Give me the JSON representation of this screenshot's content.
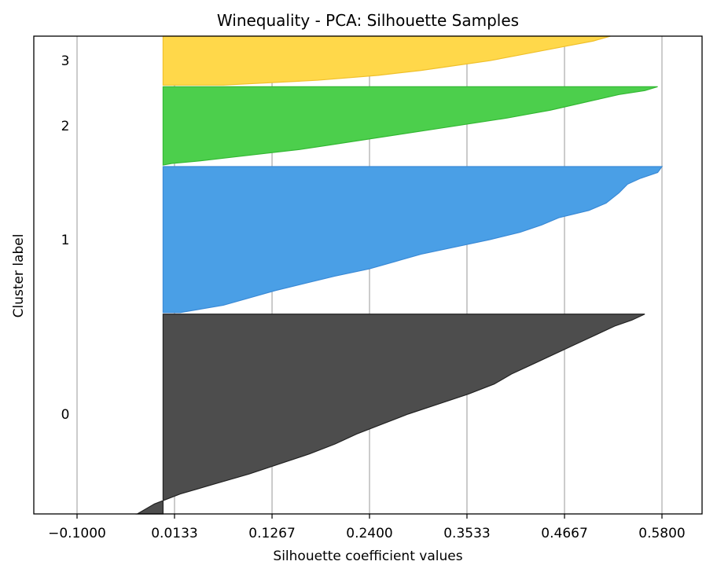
{
  "chart_data": {
    "type": "area",
    "title": "Winequality - PCA: Silhouette Samples",
    "xlabel": "Silhouette coefficient values",
    "ylabel": "Cluster label",
    "xlim": [
      -0.1,
      0.58
    ],
    "xticks": [
      "−0.1000",
      "0.0133",
      "0.1267",
      "0.2400",
      "0.3533",
      "0.4667",
      "0.5800"
    ],
    "xtick_values": [
      -0.1,
      0.0133,
      0.1267,
      0.24,
      0.3533,
      0.4667,
      0.58
    ],
    "grid": "vertical",
    "clusters": [
      {
        "label": "0",
        "color": "#4d4d4d",
        "edge": "#222222",
        "size": 1020,
        "profile": [
          [
            0.0,
            0.56
          ],
          [
            0.03,
            0.545
          ],
          [
            0.06,
            0.525
          ],
          [
            0.1,
            0.505
          ],
          [
            0.15,
            0.48
          ],
          [
            0.2,
            0.455
          ],
          [
            0.25,
            0.43
          ],
          [
            0.3,
            0.405
          ],
          [
            0.35,
            0.385
          ],
          [
            0.4,
            0.355
          ],
          [
            0.45,
            0.32
          ],
          [
            0.5,
            0.285
          ],
          [
            0.55,
            0.255
          ],
          [
            0.6,
            0.225
          ],
          [
            0.65,
            0.2
          ],
          [
            0.7,
            0.17
          ],
          [
            0.75,
            0.135
          ],
          [
            0.8,
            0.1
          ],
          [
            0.85,
            0.06
          ],
          [
            0.9,
            0.02
          ],
          [
            0.95,
            -0.01
          ],
          [
            1.0,
            -0.03
          ]
        ]
      },
      {
        "label": "1",
        "color": "#4a9fe6",
        "edge": "#3a8ad6",
        "size": 745,
        "profile": [
          [
            0.0,
            0.58
          ],
          [
            0.04,
            0.575
          ],
          [
            0.08,
            0.555
          ],
          [
            0.12,
            0.54
          ],
          [
            0.18,
            0.53
          ],
          [
            0.25,
            0.515
          ],
          [
            0.3,
            0.495
          ],
          [
            0.35,
            0.46
          ],
          [
            0.4,
            0.44
          ],
          [
            0.45,
            0.415
          ],
          [
            0.5,
            0.38
          ],
          [
            0.55,
            0.34
          ],
          [
            0.6,
            0.3
          ],
          [
            0.65,
            0.27
          ],
          [
            0.7,
            0.24
          ],
          [
            0.75,
            0.2
          ],
          [
            0.8,
            0.165
          ],
          [
            0.85,
            0.13
          ],
          [
            0.9,
            0.1
          ],
          [
            0.95,
            0.07
          ],
          [
            0.98,
            0.04
          ],
          [
            1.0,
            0.02
          ]
        ]
      },
      {
        "label": "2",
        "color": "#4ccf4c",
        "edge": "#33b833",
        "size": 400,
        "profile": [
          [
            0.0,
            0.575
          ],
          [
            0.05,
            0.56
          ],
          [
            0.1,
            0.53
          ],
          [
            0.15,
            0.51
          ],
          [
            0.2,
            0.49
          ],
          [
            0.25,
            0.47
          ],
          [
            0.3,
            0.45
          ],
          [
            0.35,
            0.425
          ],
          [
            0.4,
            0.4
          ],
          [
            0.45,
            0.37
          ],
          [
            0.5,
            0.34
          ],
          [
            0.55,
            0.31
          ],
          [
            0.6,
            0.28
          ],
          [
            0.65,
            0.25
          ],
          [
            0.7,
            0.22
          ],
          [
            0.75,
            0.19
          ],
          [
            0.8,
            0.16
          ],
          [
            0.85,
            0.12
          ],
          [
            0.9,
            0.08
          ],
          [
            0.95,
            0.04
          ],
          [
            0.98,
            0.01
          ],
          [
            1.0,
            0.0
          ]
        ]
      },
      {
        "label": "3",
        "color": "#ffd84a",
        "edge": "#f0c02a",
        "size": 250,
        "profile": [
          [
            0.0,
            0.52
          ],
          [
            0.1,
            0.5
          ],
          [
            0.2,
            0.47
          ],
          [
            0.3,
            0.44
          ],
          [
            0.4,
            0.41
          ],
          [
            0.5,
            0.38
          ],
          [
            0.6,
            0.34
          ],
          [
            0.7,
            0.3
          ],
          [
            0.8,
            0.25
          ],
          [
            0.9,
            0.18
          ],
          [
            1.0,
            0.07
          ]
        ]
      }
    ]
  }
}
